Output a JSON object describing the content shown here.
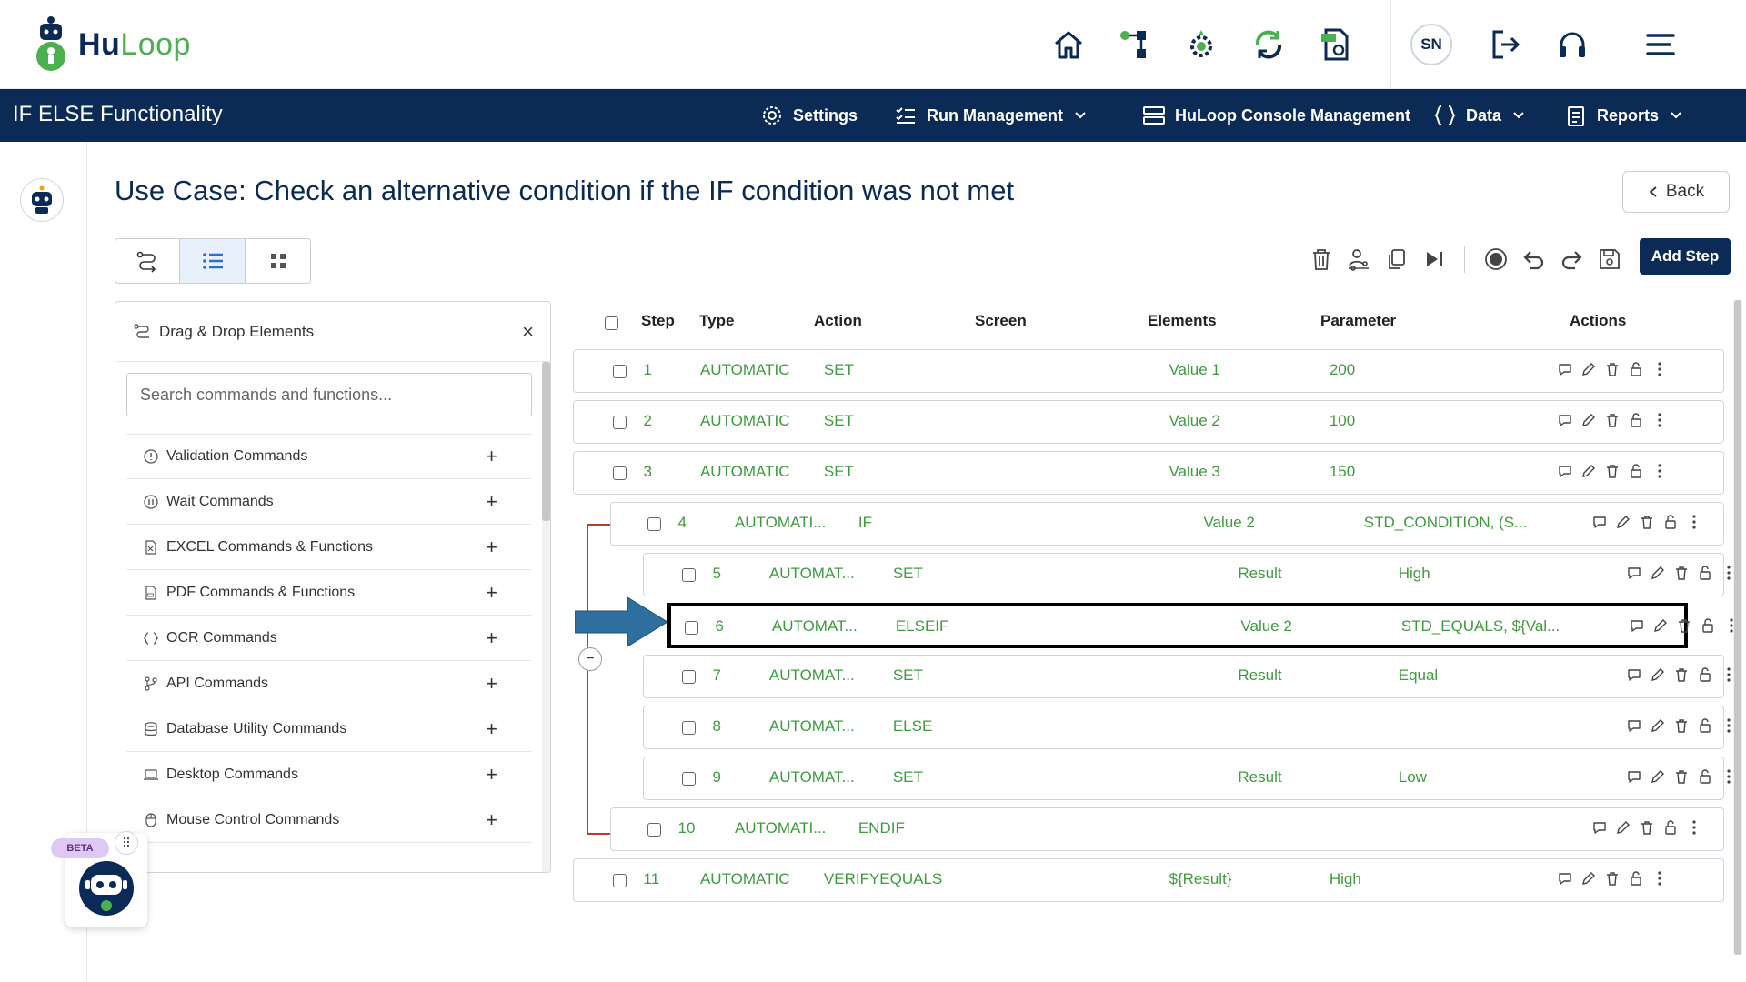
{
  "header": {
    "logo_hu": "Hu",
    "logo_loop": "Loop",
    "avatar_initials": "SN"
  },
  "nav": {
    "title": "IF ELSE Functionality",
    "items": [
      {
        "label": "Settings"
      },
      {
        "label": "Run Management"
      },
      {
        "label": "HuLoop Console Management"
      },
      {
        "label": "Data"
      },
      {
        "label": "Reports"
      }
    ]
  },
  "page": {
    "title": "Use Case: Check an alternative condition if the IF condition was not met",
    "back_label": "Back",
    "add_step_label": "Add Step"
  },
  "panel": {
    "title": "Drag & Drop Elements",
    "close": "×",
    "search_placeholder": "Search commands and functions...",
    "commands": [
      {
        "label": "Validation Commands",
        "icon": "alert-circle-icon"
      },
      {
        "label": "Wait Commands",
        "icon": "pause-circle-icon"
      },
      {
        "label": "EXCEL Commands & Functions",
        "icon": "excel-file-icon"
      },
      {
        "label": "PDF Commands & Functions",
        "icon": "pdf-file-icon"
      },
      {
        "label": "OCR Commands",
        "icon": "braces-icon"
      },
      {
        "label": "API Commands",
        "icon": "branch-icon"
      },
      {
        "label": "Database Utility Commands",
        "icon": "database-icon"
      },
      {
        "label": "Desktop Commands",
        "icon": "laptop-icon"
      },
      {
        "label": "Mouse Control Commands",
        "icon": "mouse-icon"
      }
    ]
  },
  "table": {
    "headers": {
      "step": "Step",
      "type": "Type",
      "action": "Action",
      "screen": "Screen",
      "elements": "Elements",
      "parameter": "Parameter",
      "actions": "Actions"
    },
    "rows": [
      {
        "step": "1",
        "type": "AUTOMATIC",
        "action": "SET",
        "elements": "Value 1",
        "parameter": "200"
      },
      {
        "step": "2",
        "type": "AUTOMATIC",
        "action": "SET",
        "elements": "Value 2",
        "parameter": "100"
      },
      {
        "step": "3",
        "type": "AUTOMATIC",
        "action": "SET",
        "elements": "Value 3",
        "parameter": "150"
      },
      {
        "step": "4",
        "type": "AUTOMATI...",
        "action": "IF",
        "elements": "Value 2",
        "parameter": "STD_CONDITION, (S..."
      },
      {
        "step": "5",
        "type": "AUTOMAT...",
        "action": "SET",
        "elements": "Result",
        "parameter": "High"
      },
      {
        "step": "6",
        "type": "AUTOMAT...",
        "action": "ELSEIF",
        "elements": "Value 2",
        "parameter": "STD_EQUALS, ${Val..."
      },
      {
        "step": "7",
        "type": "AUTOMAT...",
        "action": "SET",
        "elements": "Result",
        "parameter": "Equal"
      },
      {
        "step": "8",
        "type": "AUTOMAT...",
        "action": "ELSE",
        "elements": "",
        "parameter": ""
      },
      {
        "step": "9",
        "type": "AUTOMAT...",
        "action": "SET",
        "elements": "Result",
        "parameter": "Low"
      },
      {
        "step": "10",
        "type": "AUTOMATI...",
        "action": "ENDIF",
        "elements": "",
        "parameter": ""
      },
      {
        "step": "11",
        "type": "AUTOMATIC",
        "action": "VERIFYEQUALS",
        "elements": "${Result}",
        "parameter": "High"
      }
    ]
  },
  "beta": {
    "badge": "BETA"
  },
  "colors": {
    "navy": "#0b2a55",
    "green_text": "#3e9b3e",
    "brand_green": "#4caf50",
    "tree_line": "#c0392b",
    "arrow": "#2f6f9f"
  }
}
